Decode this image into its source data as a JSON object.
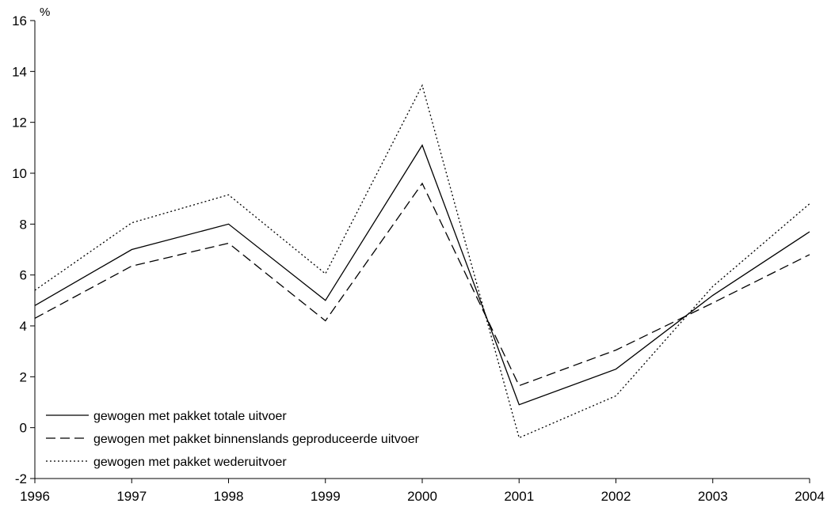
{
  "chart_data": {
    "type": "line",
    "title": "",
    "xlabel": "",
    "ylabel": "%",
    "x": [
      1996,
      1997,
      1998,
      1999,
      2000,
      2001,
      2002,
      2003,
      2004
    ],
    "x_tick_labels": [
      "1996",
      "1997",
      "1998",
      "1999",
      "2000",
      "2001",
      "2002",
      "2003",
      "2004"
    ],
    "ylim": [
      -2,
      16
    ],
    "y_ticks": [
      -2,
      0,
      2,
      4,
      6,
      8,
      10,
      12,
      14,
      16
    ],
    "y_tick_labels": [
      "-2",
      "0",
      "2",
      "4",
      "6",
      "8",
      "10",
      "12",
      "14",
      "16"
    ],
    "grid": false,
    "legend_position": "bottom-left",
    "series": [
      {
        "name": "gewogen met pakket totale uitvoer",
        "style": "solid",
        "color": "#000000",
        "values": [
          4.8,
          7.0,
          8.0,
          5.0,
          11.1,
          0.9,
          2.3,
          5.2,
          7.7
        ]
      },
      {
        "name": "gewogen met pakket binnenslands geproduceerde uitvoer",
        "style": "dashed",
        "color": "#000000",
        "values": [
          4.3,
          6.35,
          7.25,
          4.2,
          9.6,
          1.65,
          3.05,
          4.9,
          6.8
        ]
      },
      {
        "name": "gewogen met pakket wederuitvoer",
        "style": "dotted",
        "color": "#000000",
        "values": [
          5.4,
          8.05,
          9.15,
          6.05,
          13.45,
          -0.4,
          1.25,
          5.55,
          8.8
        ]
      }
    ]
  }
}
